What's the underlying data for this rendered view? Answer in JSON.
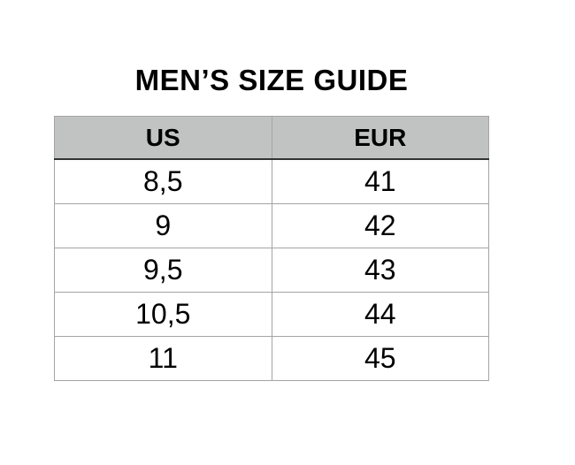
{
  "title": "MEN’S SIZE GUIDE",
  "size_table": {
    "headers": {
      "us": "US",
      "eur": "EUR"
    },
    "rows": [
      {
        "us": "8,5",
        "eur": "41"
      },
      {
        "us": "9",
        "eur": "42"
      },
      {
        "us": "9,5",
        "eur": "43"
      },
      {
        "us": "10,5",
        "eur": "44"
      },
      {
        "us": "11",
        "eur": "45"
      }
    ]
  },
  "colors": {
    "page_background": "#ffffff",
    "header_background": "#c1c3c2",
    "header_bottom_border": "#333333",
    "grid_border": "#a4a4a4",
    "text": "#000000"
  }
}
